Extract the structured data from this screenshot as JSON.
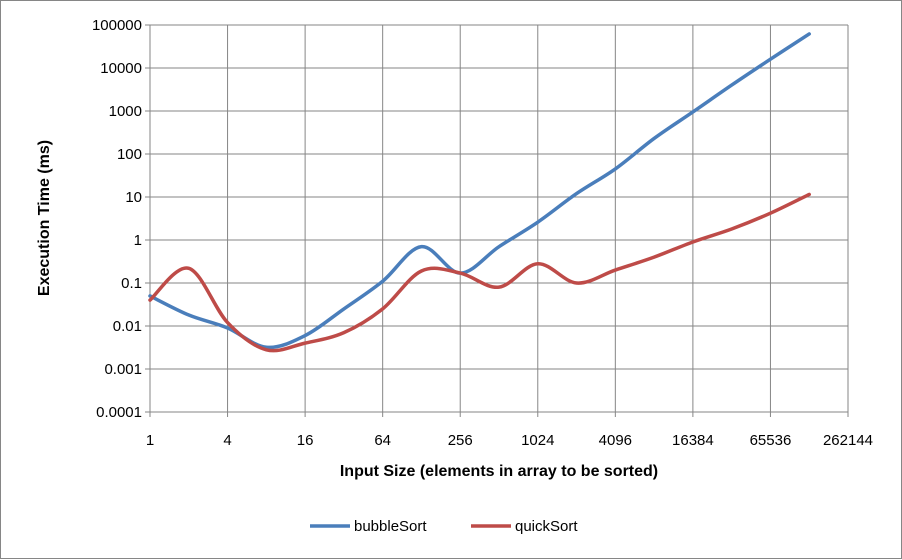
{
  "chart_data": {
    "type": "line",
    "title": "",
    "xlabel": "Input Size (elements in array to be sorted)",
    "ylabel": "Execution Time (ms)",
    "x_scale": "log2",
    "y_scale": "log10",
    "xlim": [
      1,
      262144
    ],
    "ylim": [
      0.0001,
      100000
    ],
    "x_ticks": [
      "1",
      "4",
      "16",
      "64",
      "256",
      "1024",
      "4096",
      "16384",
      "65536",
      "262144"
    ],
    "y_ticks": [
      "0.0001",
      "0.001",
      "0.01",
      "0.1",
      "1",
      "10",
      "100",
      "1000",
      "10000",
      "100000"
    ],
    "grid": true,
    "legend": "bottom",
    "x": [
      1,
      2,
      4,
      8,
      16,
      32,
      64,
      128,
      256,
      512,
      1024,
      2048,
      4096,
      8192,
      16384,
      32768,
      65536,
      131072
    ],
    "series": [
      {
        "name": "bubbleSort",
        "color": "#4a7ebb",
        "values": [
          0.05,
          0.018,
          0.009,
          0.0032,
          0.006,
          0.025,
          0.11,
          0.7,
          0.17,
          0.7,
          2.6,
          12,
          45,
          230,
          950,
          4000,
          16000,
          62000
        ]
      },
      {
        "name": "quickSort",
        "color": "#be4b48",
        "values": [
          0.04,
          0.22,
          0.012,
          0.0028,
          0.004,
          0.007,
          0.025,
          0.19,
          0.17,
          0.08,
          0.28,
          0.1,
          0.2,
          0.4,
          0.9,
          1.8,
          4.2,
          11.5
        ]
      }
    ]
  }
}
